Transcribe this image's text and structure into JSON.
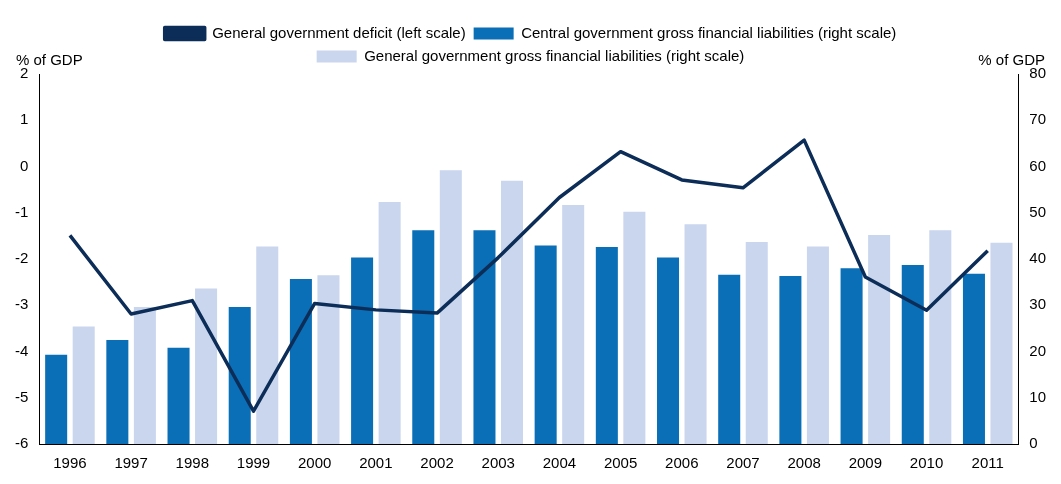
{
  "chart_data": {
    "type": "bar",
    "ylabel": "% of GDP",
    "y2label": "% of GDP",
    "categories": [
      "1996",
      "1997",
      "1998",
      "1999",
      "2000",
      "2001",
      "2002",
      "2003",
      "2004",
      "2005",
      "2006",
      "2007",
      "2008",
      "2009",
      "2010",
      "2011"
    ],
    "series": [
      {
        "name": "Central government gross financial liabilities (right scale)",
        "color": "#0a6fb7",
        "axis": "y2",
        "values": [
          19.3,
          22.5,
          20.8,
          29.6,
          35.7,
          40.3,
          46.2,
          46.2,
          42.9,
          42.6,
          40.3,
          36.6,
          36.3,
          38.0,
          38.7,
          36.8
        ]
      },
      {
        "name": "General government gross financial liabilities (right scale)",
        "color": "#c9d6ee",
        "axis": "y2",
        "values": [
          25.4,
          29.6,
          33.6,
          42.7,
          36.5,
          52.3,
          59.2,
          56.9,
          51.7,
          50.2,
          47.5,
          43.7,
          42.7,
          45.2,
          46.2,
          43.5
        ]
      },
      {
        "name": "General government deficit (left scale)",
        "type": "line",
        "color": "#0c2d57",
        "axis": "y",
        "values": [
          -1.49,
          -3.19,
          -2.9,
          -5.29,
          -2.96,
          -3.1,
          -3.17,
          -1.97,
          -0.67,
          0.32,
          -0.29,
          -0.46,
          0.57,
          -2.39,
          -3.11,
          -1.82
        ]
      }
    ],
    "ylim": [
      -6,
      2
    ],
    "yticks": [
      -6,
      -5,
      -4,
      -3,
      -2,
      -1,
      0,
      1,
      2
    ],
    "y2lim": [
      0,
      80
    ],
    "y2ticks": [
      0,
      10,
      20,
      30,
      40,
      50,
      60,
      70,
      80
    ],
    "grid": false,
    "legend": "top",
    "marker": "none",
    "line_style": "solid"
  }
}
